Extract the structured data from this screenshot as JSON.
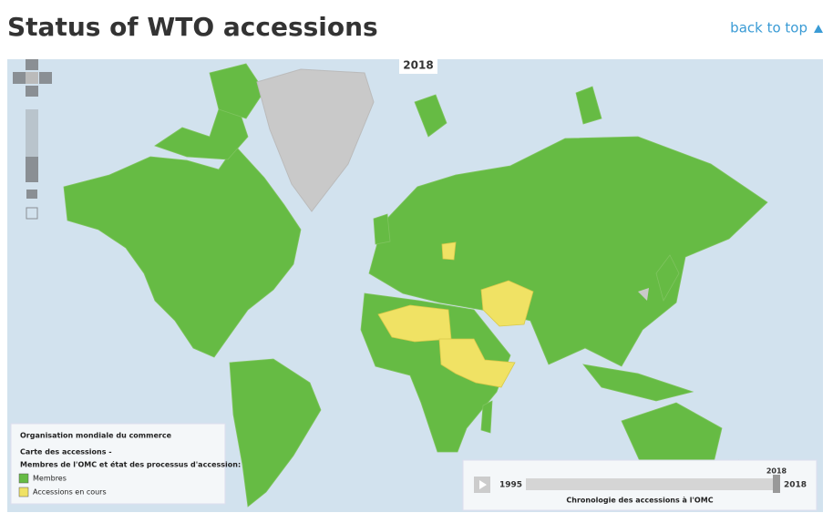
{
  "header": {
    "title": "Status of WTO accessions",
    "back_to_top": "back to top"
  },
  "map": {
    "legend": {
      "title": "Organisation mondiale du commerce",
      "subtitle": "Carte des accessions -",
      "heading": "Membres de l'OMC et état des processus d'accession:",
      "items": [
        {
          "label": "Membres",
          "color": "#66bb44"
        },
        {
          "label": "Accessions en cours",
          "color": "#f0e264"
        }
      ]
    },
    "timeline": {
      "start": 1995,
      "end": 2018,
      "current": 2018,
      "caption": "Chronologie des accessions à l'OMC"
    }
  }
}
